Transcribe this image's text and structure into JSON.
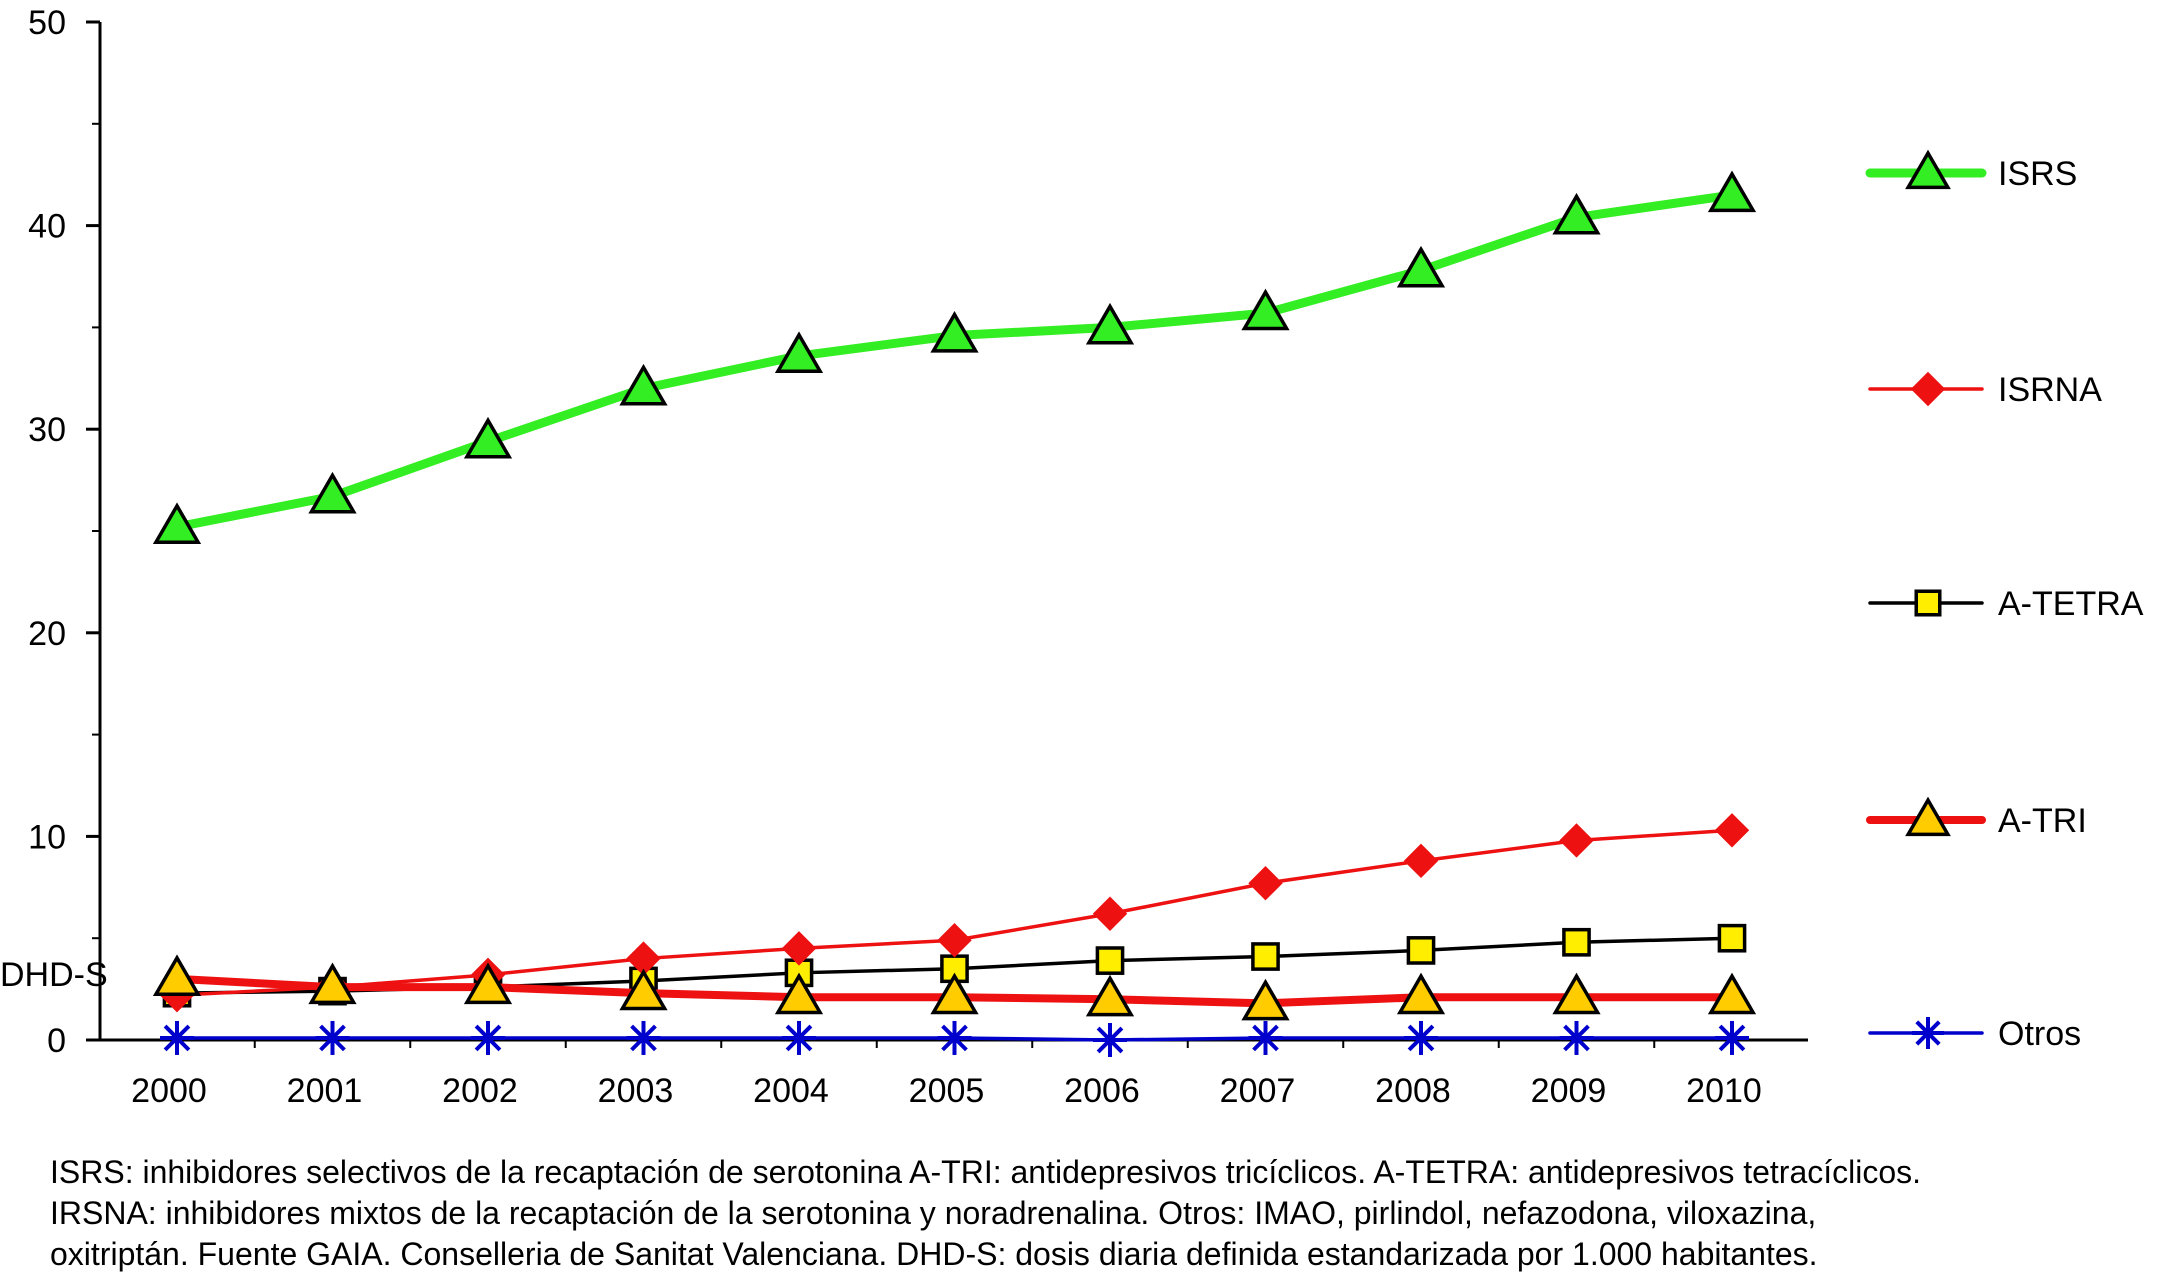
{
  "chart_data": {
    "type": "line",
    "ylabel": "DHD-S",
    "xlabel": "",
    "ylim": [
      0,
      50
    ],
    "yticks": [
      0,
      10,
      20,
      30,
      40,
      50
    ],
    "categories": [
      "2000",
      "2001",
      "2002",
      "2003",
      "2004",
      "2005",
      "2006",
      "2007",
      "2008",
      "2009",
      "2010"
    ],
    "grid": false,
    "legend_position": "right",
    "series": [
      {
        "name": "ISRS",
        "color": "#33ee22",
        "marker": "triangle",
        "marker_fill": "#33ee22",
        "values": [
          25.2,
          26.7,
          29.4,
          32.0,
          33.6,
          34.6,
          35.0,
          35.7,
          37.8,
          40.4,
          41.5
        ]
      },
      {
        "name": "ISRNA",
        "color": "#ee1111",
        "marker": "diamond",
        "marker_fill": "#ee1111",
        "values": [
          2.2,
          2.6,
          3.2,
          4.0,
          4.5,
          4.9,
          6.2,
          7.7,
          8.8,
          9.8,
          10.3
        ]
      },
      {
        "name": "A-TETRA",
        "color": "#000000",
        "marker": "square",
        "marker_fill": "#ffee00",
        "values": [
          2.3,
          2.4,
          2.6,
          2.9,
          3.3,
          3.5,
          3.9,
          4.1,
          4.4,
          4.8,
          5.0
        ]
      },
      {
        "name": "A-TRI",
        "color": "#ee1111",
        "marker": "triangle",
        "marker_fill": "#ffcc00",
        "values": [
          3.0,
          2.6,
          2.6,
          2.3,
          2.1,
          2.1,
          2.0,
          1.8,
          2.1,
          2.1,
          2.1
        ]
      },
      {
        "name": "Otros",
        "color": "#0000cc",
        "marker": "asterisk",
        "marker_fill": "#0000cc",
        "values": [
          0.1,
          0.1,
          0.1,
          0.1,
          0.1,
          0.1,
          0.0,
          0.1,
          0.1,
          0.1,
          0.1
        ]
      }
    ]
  },
  "caption": {
    "line1": "ISRS: inhibidores selectivos de la recaptación de serotonina A-TRI: antidepresivos tricíclicos. A-TETRA: antidepresivos tetracíclicos.",
    "line2": "IRSNA: inhibidores mixtos de la recaptación de la serotonina  y noradrenalina. Otros: IMAO, pirlindol, nefazodona, viloxazina,",
    "line3": "oxitriptán. Fuente GAIA. Conselleria de Sanitat Valenciana. DHD-S: dosis diaria definida estandarizada por 1.000 habitantes."
  }
}
